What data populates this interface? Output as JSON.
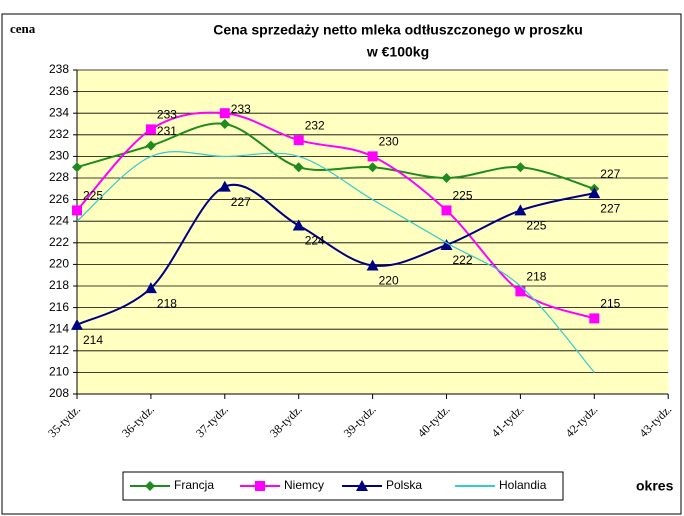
{
  "chart_data": {
    "type": "line",
    "title": "Cena sprzedaży netto mleka odtłuszczonego w proszku",
    "subtitle": "w €100kg",
    "y_label": "cena",
    "x_label": "okres",
    "categories": [
      "35-tydz.",
      "36-tydz.",
      "37-tydz.",
      "38-tydz.",
      "39-tydz.",
      "40-tydz.",
      "41-tydz.",
      "42-tydz.",
      "43-tydz."
    ],
    "ylim": [
      208,
      238
    ],
    "yticks": [
      208,
      210,
      212,
      214,
      216,
      218,
      220,
      222,
      224,
      226,
      228,
      230,
      232,
      234,
      236,
      238
    ],
    "grid": true,
    "series": [
      {
        "name": "Francja",
        "color": "#1f8a1f",
        "marker": "diamond",
        "values": [
          229,
          231,
          233,
          229,
          229,
          228,
          229,
          227,
          null
        ],
        "value_labels": [
          null,
          "231",
          "233",
          null,
          null,
          null,
          null,
          "227",
          null
        ]
      },
      {
        "name": "Niemcy",
        "color": "#ff00ff",
        "marker": "square",
        "values": [
          225,
          232.5,
          234,
          231.5,
          230,
          225,
          217.5,
          215,
          null
        ],
        "value_labels": [
          "225",
          "233",
          null,
          "232",
          "230",
          "225",
          "218",
          "215",
          null
        ]
      },
      {
        "name": "Polska",
        "color": "#000080",
        "marker": "triangle",
        "values": [
          214.4,
          217.8,
          227.2,
          223.6,
          219.9,
          221.8,
          225,
          226.6,
          null
        ],
        "value_labels": [
          "214",
          "218",
          "227",
          "224",
          "220",
          "222",
          "225",
          "227",
          null
        ]
      },
      {
        "name": "Holandia",
        "color": "#33cccc",
        "marker": "none",
        "values": [
          224,
          230,
          230,
          230,
          226,
          222,
          218,
          210,
          null
        ],
        "value_labels": [
          null,
          null,
          null,
          null,
          null,
          null,
          null,
          null,
          null
        ]
      }
    ]
  }
}
